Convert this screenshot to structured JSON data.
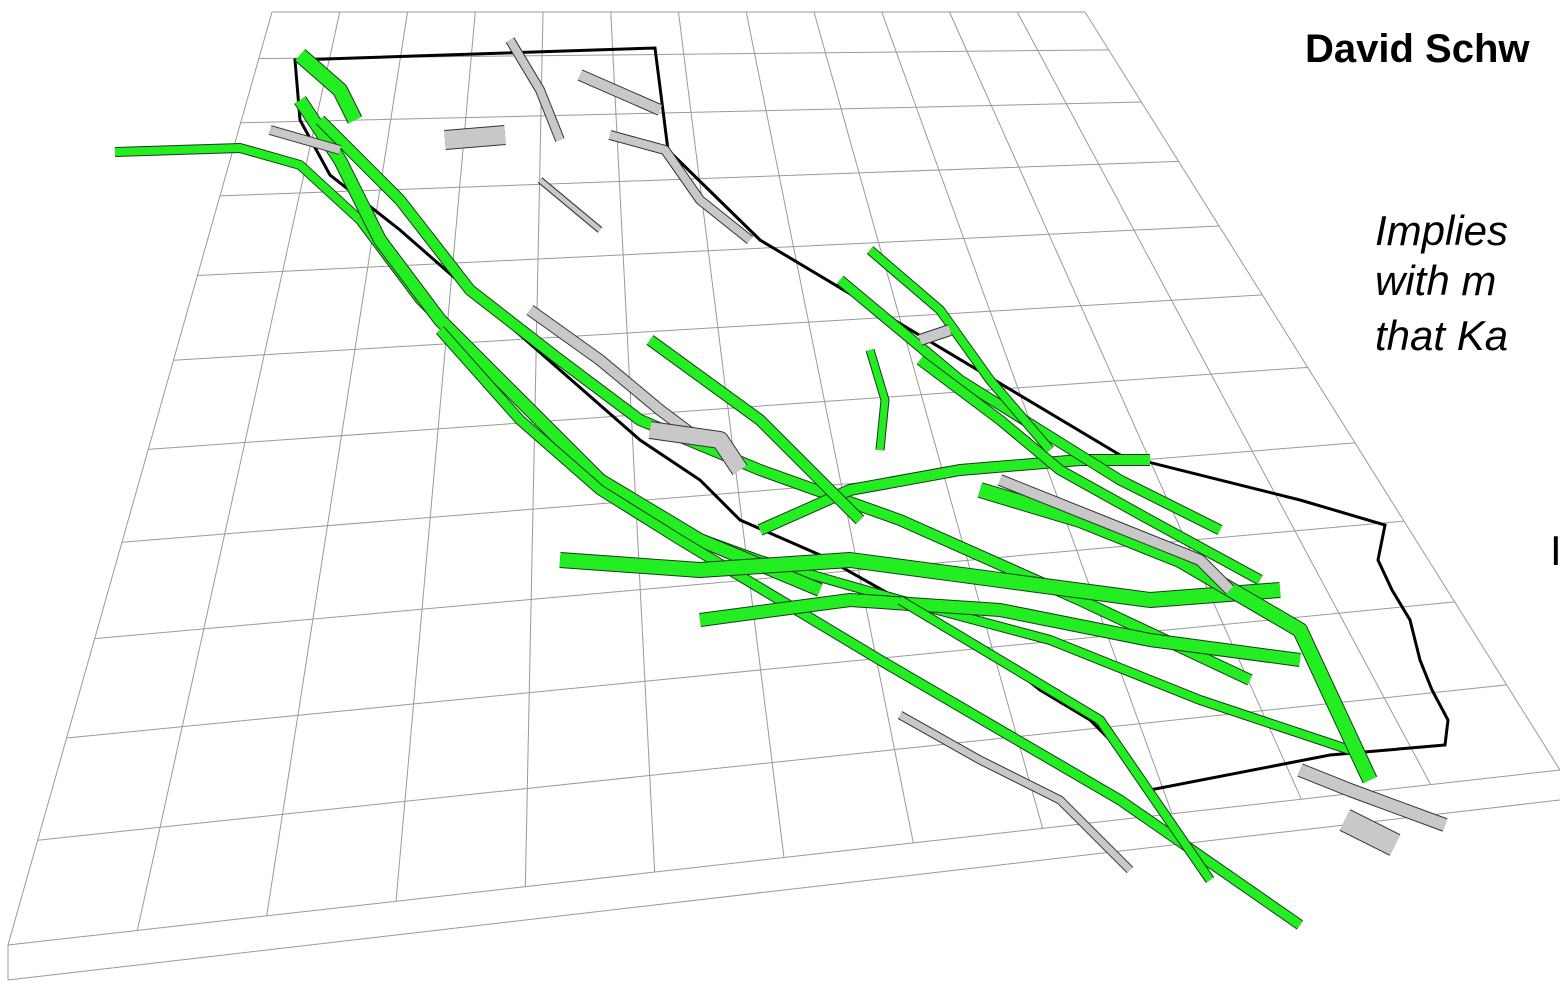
{
  "slide": {
    "title": "David Schw",
    "body_lines": [
      "Implies",
      "with m",
      "that Ka"
    ],
    "fragment": "I"
  }
}
